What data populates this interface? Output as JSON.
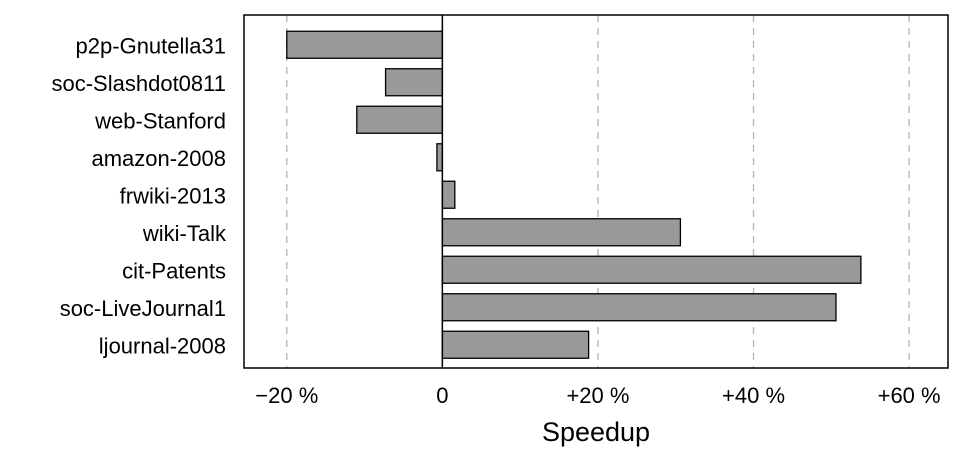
{
  "chart_data": {
    "type": "bar",
    "orientation": "horizontal",
    "categories": [
      "p2p-Gnutella31",
      "soc-Slashdot0811",
      "web-Stanford",
      "amazon-2008",
      "frwiki-2013",
      "wiki-Talk",
      "cit-Patents",
      "soc-LiveJournal1",
      "ljournal-2008"
    ],
    "values": [
      -20,
      -7.3,
      -11,
      -0.7,
      1.6,
      30.6,
      53.8,
      50.6,
      18.8
    ],
    "xlabel": "Speedup",
    "ylabel": "",
    "title": "",
    "xlim": [
      -25.5,
      65
    ],
    "xticks": [
      -20,
      0,
      20,
      40,
      60
    ],
    "xtick_labels": [
      "−20 %",
      "0",
      "+20 %",
      "+40 %",
      "+60 %"
    ],
    "grid": "vertical dashed at x ticks",
    "legend": "none",
    "colors": {
      "bar_fill": "#999999",
      "bar_stroke": "#000000",
      "grid": "#b3b3b3",
      "axis": "#000000"
    }
  }
}
